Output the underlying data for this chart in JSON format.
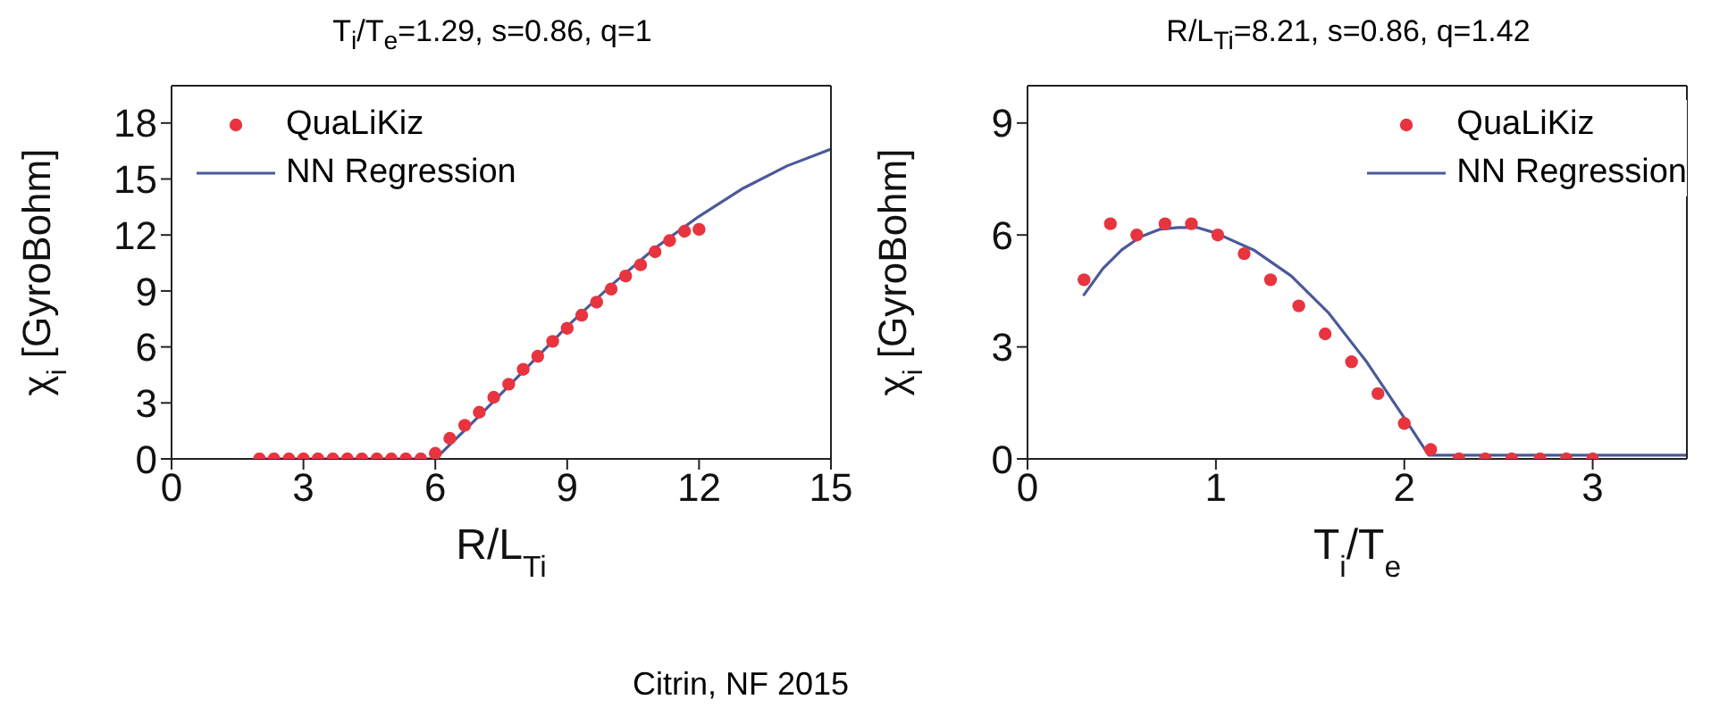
{
  "chart_data": [
    {
      "type": "line",
      "title": "T$_{i}$/T$_{e}$=1.29, s=0.86, q=1",
      "xlabel": "R/L$_{Ti}$",
      "ylabel": "χ$_{i}$ [GyroBohm]",
      "xlim": [
        0,
        15
      ],
      "xticks": [
        0,
        3,
        6,
        9,
        12,
        15
      ],
      "ylim": [
        0,
        20
      ],
      "yticks": [
        0,
        3,
        6,
        9,
        12,
        15,
        18
      ],
      "grid": false,
      "legend": "top left",
      "annotations": [
        "Citrin, NF 2015"
      ],
      "series": [
        {
          "name": "QuaLiKiz",
          "type": "scatter",
          "marker": "circle",
          "color": "#e8343f",
          "x": [
            2,
            2.33,
            2.67,
            3,
            3.33,
            3.67,
            4,
            4.33,
            4.67,
            5,
            5.33,
            5.67,
            6,
            6.33,
            6.67,
            7,
            7.33,
            7.67,
            8,
            8.33,
            8.67,
            9,
            9.33,
            9.67,
            10,
            10.33,
            10.67,
            11,
            11.33,
            11.67,
            12
          ],
          "values": [
            0,
            0,
            0,
            0,
            0,
            0,
            0,
            0,
            0,
            0,
            0,
            0,
            0.3,
            1.1,
            1.8,
            2.5,
            3.3,
            4.0,
            4.8,
            5.5,
            6.3,
            7.0,
            7.7,
            8.4,
            9.1,
            9.8,
            10.4,
            11.1,
            11.7,
            12.2,
            12.3
          ]
        },
        {
          "name": "NN Regression",
          "type": "line",
          "marker": "none",
          "line_style": "solid",
          "color": "#4a5a9a",
          "x": [
            2,
            6,
            7,
            8,
            9,
            10,
            11,
            12,
            13,
            14,
            15
          ],
          "values": [
            0,
            0,
            2.3,
            4.7,
            7.1,
            9.3,
            11.3,
            13.0,
            14.5,
            15.7,
            16.6
          ]
        }
      ]
    },
    {
      "type": "line",
      "title": "R/L$_{Ti}$=8.21, s=0.86, q=1.42",
      "xlabel": "T$_{i}$/T$_{e}$",
      "ylabel": "χ$_{i}$ [GyroBohm]",
      "xlim": [
        0,
        3.5
      ],
      "xticks": [
        0,
        1,
        2,
        3
      ],
      "ylim": [
        0,
        10
      ],
      "yticks": [
        0,
        3,
        6,
        9
      ],
      "grid": false,
      "legend": "top right",
      "series": [
        {
          "name": "QuaLiKiz",
          "type": "scatter",
          "marker": "circle",
          "color": "#e8343f",
          "x": [
            0.3,
            0.44,
            0.58,
            0.73,
            0.87,
            1.01,
            1.15,
            1.29,
            1.44,
            1.58,
            1.72,
            1.86,
            2.0,
            2.14,
            2.29,
            2.43,
            2.57,
            2.72,
            2.86,
            3.0
          ],
          "values": [
            4.8,
            6.3,
            6.0,
            6.3,
            6.3,
            6.0,
            5.5,
            4.8,
            4.1,
            3.35,
            2.6,
            1.75,
            0.95,
            0.25,
            0,
            0,
            0,
            0,
            0,
            0
          ]
        },
        {
          "name": "NN Regression",
          "type": "line",
          "marker": "none",
          "line_style": "solid",
          "color": "#4a5a9a",
          "x": [
            0.3,
            0.4,
            0.5,
            0.6,
            0.7,
            0.8,
            0.9,
            1.0,
            1.2,
            1.4,
            1.6,
            1.8,
            2.0,
            2.13,
            3.5
          ],
          "values": [
            4.4,
            5.1,
            5.6,
            5.95,
            6.15,
            6.2,
            6.2,
            6.05,
            5.6,
            4.9,
            3.9,
            2.6,
            1.1,
            0.1,
            0.1
          ]
        }
      ]
    }
  ]
}
